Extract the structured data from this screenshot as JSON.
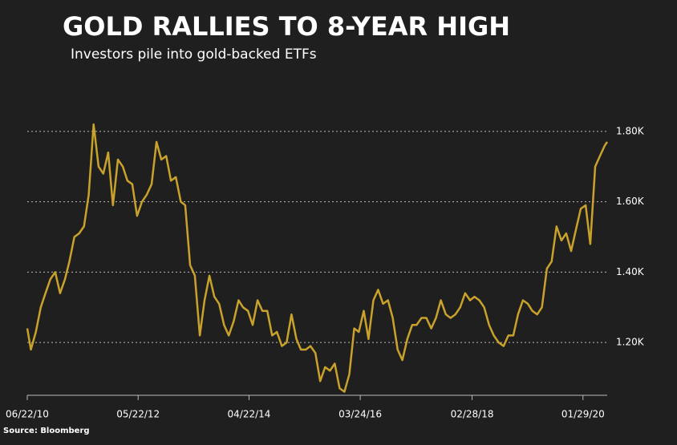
{
  "chart_data": {
    "type": "line",
    "title": "GOLD RALLIES TO 8-YEAR HIGH",
    "subtitle": "Investors pile into gold-backed ETFs",
    "source": "Source: Bloomberg",
    "x": [
      "2010-06-22",
      "2010-07-15",
      "2010-08-15",
      "2010-09-15",
      "2010-10-15",
      "2010-11-15",
      "2010-12-15",
      "2011-01-15",
      "2011-02-15",
      "2011-03-15",
      "2011-04-15",
      "2011-05-15",
      "2011-06-15",
      "2011-07-15",
      "2011-08-15",
      "2011-09-15",
      "2011-10-15",
      "2011-11-15",
      "2011-12-15",
      "2012-01-15",
      "2012-02-15",
      "2012-03-15",
      "2012-04-15",
      "2012-05-15",
      "2012-06-15",
      "2012-07-15",
      "2012-08-15",
      "2012-09-15",
      "2012-10-15",
      "2012-11-15",
      "2012-12-15",
      "2013-01-15",
      "2013-02-15",
      "2013-03-15",
      "2013-04-15",
      "2013-05-15",
      "2013-06-15",
      "2013-07-15",
      "2013-08-15",
      "2013-09-15",
      "2013-10-15",
      "2013-11-15",
      "2013-12-15",
      "2014-01-15",
      "2014-02-15",
      "2014-03-15",
      "2014-04-15",
      "2014-05-15",
      "2014-06-15",
      "2014-07-15",
      "2014-08-15",
      "2014-09-15",
      "2014-10-15",
      "2014-11-15",
      "2014-12-15",
      "2015-01-15",
      "2015-02-15",
      "2015-03-15",
      "2015-04-15",
      "2015-05-15",
      "2015-06-15",
      "2015-07-15",
      "2015-08-15",
      "2015-09-15",
      "2015-10-15",
      "2015-11-15",
      "2015-12-15",
      "2016-01-15",
      "2016-02-15",
      "2016-03-15",
      "2016-04-15",
      "2016-05-15",
      "2016-06-15",
      "2016-07-15",
      "2016-08-15",
      "2016-09-15",
      "2016-10-15",
      "2016-11-15",
      "2016-12-15",
      "2017-01-15",
      "2017-02-15",
      "2017-03-15",
      "2017-04-15",
      "2017-05-15",
      "2017-06-15",
      "2017-07-15",
      "2017-08-15",
      "2017-09-15",
      "2017-10-15",
      "2017-11-15",
      "2017-12-15",
      "2018-01-15",
      "2018-02-15",
      "2018-03-15",
      "2018-04-15",
      "2018-05-15",
      "2018-06-15",
      "2018-07-15",
      "2018-08-15",
      "2018-09-15",
      "2018-10-15",
      "2018-11-15",
      "2018-12-15",
      "2019-01-15",
      "2019-02-15",
      "2019-03-15",
      "2019-04-15",
      "2019-05-15",
      "2019-06-15",
      "2019-07-15",
      "2019-08-15",
      "2019-09-15",
      "2019-10-15",
      "2019-11-15",
      "2019-12-15",
      "2020-01-15",
      "2020-02-15",
      "2020-03-15",
      "2020-04-15",
      "2020-05-15",
      "2020-06-15",
      "2020-06-30"
    ],
    "series": [
      {
        "name": "Gold",
        "color": "#c9a22c",
        "values": [
          1240,
          1180,
          1230,
          1300,
          1340,
          1380,
          1400,
          1340,
          1380,
          1430,
          1500,
          1510,
          1530,
          1620,
          1820,
          1700,
          1680,
          1740,
          1590,
          1720,
          1700,
          1660,
          1650,
          1560,
          1600,
          1620,
          1650,
          1770,
          1720,
          1730,
          1660,
          1670,
          1600,
          1590,
          1420,
          1390,
          1220,
          1320,
          1390,
          1330,
          1310,
          1250,
          1220,
          1260,
          1320,
          1300,
          1290,
          1250,
          1320,
          1290,
          1290,
          1220,
          1230,
          1190,
          1200,
          1280,
          1210,
          1180,
          1180,
          1190,
          1170,
          1090,
          1130,
          1120,
          1140,
          1070,
          1060,
          1110,
          1240,
          1230,
          1290,
          1210,
          1320,
          1350,
          1310,
          1320,
          1270,
          1180,
          1150,
          1210,
          1250,
          1250,
          1270,
          1270,
          1240,
          1270,
          1320,
          1280,
          1270,
          1280,
          1300,
          1340,
          1320,
          1330,
          1320,
          1300,
          1250,
          1220,
          1200,
          1190,
          1220,
          1220,
          1280,
          1320,
          1310,
          1290,
          1280,
          1300,
          1410,
          1430,
          1530,
          1490,
          1510,
          1460,
          1520,
          1580,
          1590,
          1480,
          1700,
          1730,
          1760,
          1770
        ]
      }
    ],
    "xlim": [
      "2010-06-22",
      "2020-06-30"
    ],
    "xticks": [
      {
        "value": "2010-06-22",
        "label": "06/22/10"
      },
      {
        "value": "2012-05-22",
        "label": "05/22/12"
      },
      {
        "value": "2014-04-22",
        "label": "04/22/14"
      },
      {
        "value": "2016-03-24",
        "label": "03/24/16"
      },
      {
        "value": "2018-02-28",
        "label": "02/28/18"
      },
      {
        "value": "2020-01-29",
        "label": "01/29/20"
      }
    ],
    "ylim": [
      1050,
      1900
    ],
    "yticks": [
      {
        "value": 1200,
        "label": "1.20K"
      },
      {
        "value": 1400,
        "label": "1.40K"
      },
      {
        "value": 1600,
        "label": "1.60K"
      },
      {
        "value": 1800,
        "label": "1.80K"
      }
    ],
    "grid": true
  }
}
